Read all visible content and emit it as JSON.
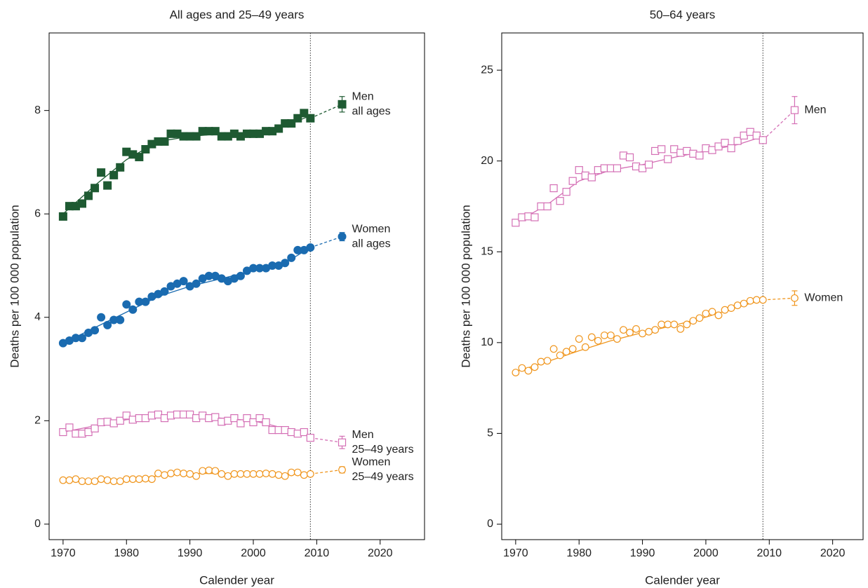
{
  "chart_data": [
    {
      "type": "scatter",
      "title": "All ages and 25–49 years",
      "x_label": "Calender year",
      "y_label": "Deaths per 100 000 population",
      "xlim": [
        1967.8,
        2027
      ],
      "ylim": [
        -0.3,
        9.5
      ],
      "xticks": [
        1970,
        1980,
        1990,
        2000,
        2010,
        2020
      ],
      "yticks": [
        0,
        2,
        4,
        6,
        8
      ],
      "x": [
        1970,
        1971,
        1972,
        1973,
        1974,
        1975,
        1976,
        1977,
        1978,
        1979,
        1980,
        1981,
        1982,
        1983,
        1984,
        1985,
        1986,
        1987,
        1988,
        1989,
        1990,
        1991,
        1992,
        1993,
        1994,
        1995,
        1996,
        1997,
        1998,
        1999,
        2000,
        2001,
        2002,
        2003,
        2004,
        2005,
        2006,
        2007,
        2008,
        2009
      ],
      "fit_x": [
        1970,
        1975,
        1980,
        1985,
        1990,
        1995,
        2000,
        2005,
        2009
      ],
      "projection_x": 2014,
      "cutoff_x": 2009,
      "series": [
        {
          "name": [
            "Men",
            "all ages"
          ],
          "color": "#1e5a32",
          "marker": "square",
          "filled": true,
          "values": [
            5.95,
            6.15,
            6.15,
            6.2,
            6.35,
            6.5,
            6.8,
            6.55,
            6.75,
            6.9,
            7.2,
            7.15,
            7.1,
            7.25,
            7.35,
            7.4,
            7.4,
            7.55,
            7.55,
            7.5,
            7.5,
            7.5,
            7.6,
            7.6,
            7.6,
            7.5,
            7.5,
            7.55,
            7.5,
            7.55,
            7.55,
            7.55,
            7.6,
            7.6,
            7.65,
            7.75,
            7.75,
            7.85,
            7.95,
            7.85
          ],
          "fit": [
            6.0,
            6.55,
            7.05,
            7.4,
            7.5,
            7.55,
            7.55,
            7.7,
            7.9
          ],
          "projection": 8.12,
          "projection_error": 0.15
        },
        {
          "name": [
            "Women",
            "all ages"
          ],
          "color": "#1a6bb0",
          "marker": "circle",
          "filled": true,
          "values": [
            3.5,
            3.55,
            3.6,
            3.6,
            3.7,
            3.75,
            4.0,
            3.85,
            3.95,
            3.95,
            4.25,
            4.15,
            4.3,
            4.3,
            4.4,
            4.45,
            4.5,
            4.6,
            4.65,
            4.7,
            4.6,
            4.65,
            4.75,
            4.8,
            4.8,
            4.75,
            4.7,
            4.75,
            4.8,
            4.9,
            4.95,
            4.95,
            4.95,
            5.0,
            5.0,
            5.05,
            5.15,
            5.3,
            5.3,
            5.35
          ],
          "fit": [
            3.5,
            3.8,
            4.1,
            4.4,
            4.6,
            4.75,
            4.9,
            5.05,
            5.35
          ],
          "projection": 5.56,
          "projection_error": 0.08
        },
        {
          "name": [
            "Men",
            "25–49 years"
          ],
          "color": "#d46fb5",
          "marker": "square",
          "filled": false,
          "values": [
            1.78,
            1.87,
            1.75,
            1.75,
            1.78,
            1.85,
            1.97,
            1.98,
            1.95,
            2.0,
            2.1,
            2.02,
            2.05,
            2.05,
            2.1,
            2.12,
            2.05,
            2.1,
            2.12,
            2.12,
            2.12,
            2.05,
            2.1,
            2.05,
            2.07,
            1.98,
            2.0,
            2.05,
            1.95,
            2.05,
            1.97,
            2.05,
            1.97,
            1.82,
            1.82,
            1.82,
            1.78,
            1.75,
            1.78,
            1.67
          ],
          "fit": [
            1.78,
            1.9,
            2.02,
            2.08,
            2.1,
            2.05,
            2.0,
            1.85,
            1.7
          ],
          "projection": 1.58,
          "projection_error": 0.12
        },
        {
          "name": [
            "Women",
            "25–49 years"
          ],
          "color": "#f0961e",
          "marker": "circle",
          "filled": false,
          "values": [
            0.85,
            0.85,
            0.87,
            0.83,
            0.83,
            0.83,
            0.87,
            0.85,
            0.83,
            0.83,
            0.87,
            0.87,
            0.87,
            0.88,
            0.87,
            0.98,
            0.95,
            0.98,
            1.0,
            0.98,
            0.97,
            0.93,
            1.03,
            1.04,
            1.03,
            0.97,
            0.93,
            0.97,
            0.97,
            0.97,
            0.97,
            0.97,
            0.98,
            0.97,
            0.95,
            0.93,
            1.0,
            1.0,
            0.95,
            0.97
          ],
          "fit": [
            0.85,
            0.86,
            0.87,
            0.93,
            0.98,
            0.98,
            0.97,
            0.97,
            0.97
          ],
          "projection": 1.05,
          "projection_error": 0.06
        }
      ]
    },
    {
      "type": "scatter",
      "title": "50–64 years",
      "x_label": "Calender year",
      "y_label": "Deaths per 100 000 population",
      "xlim": [
        1967.8,
        2024.8
      ],
      "ylim": [
        -0.85,
        27.05
      ],
      "xticks": [
        1970,
        1980,
        1990,
        2000,
        2010,
        2020
      ],
      "yticks": [
        0,
        5,
        10,
        15,
        20,
        25
      ],
      "x": [
        1970,
        1971,
        1972,
        1973,
        1974,
        1975,
        1976,
        1977,
        1978,
        1979,
        1980,
        1981,
        1982,
        1983,
        1984,
        1985,
        1986,
        1987,
        1988,
        1989,
        1990,
        1991,
        1992,
        1993,
        1994,
        1995,
        1996,
        1997,
        1998,
        1999,
        2000,
        2001,
        2002,
        2003,
        2004,
        2005,
        2006,
        2007,
        2008,
        2009
      ],
      "fit_x": [
        1970,
        1975,
        1980,
        1985,
        1990,
        1995,
        2000,
        2005,
        2009
      ],
      "projection_x": 2014,
      "cutoff_x": 2009,
      "series": [
        {
          "name": [
            "Men"
          ],
          "color": "#d46fb5",
          "marker": "square",
          "filled": false,
          "values": [
            16.6,
            16.9,
            16.95,
            16.9,
            17.5,
            17.5,
            18.5,
            17.8,
            18.3,
            18.9,
            19.5,
            19.2,
            19.1,
            19.5,
            19.6,
            19.6,
            19.6,
            20.3,
            20.2,
            19.7,
            19.6,
            19.8,
            20.55,
            20.65,
            20.1,
            20.65,
            20.45,
            20.55,
            20.4,
            20.3,
            20.7,
            20.6,
            20.8,
            21.0,
            20.7,
            21.1,
            21.4,
            21.6,
            21.4,
            21.15
          ],
          "fit": [
            16.6,
            17.6,
            18.9,
            19.5,
            19.8,
            20.2,
            20.55,
            20.9,
            21.35
          ],
          "projection": 22.8,
          "projection_error": 0.75
        },
        {
          "name": [
            "Women"
          ],
          "color": "#f0961e",
          "marker": "circle",
          "filled": false,
          "values": [
            8.35,
            8.6,
            8.45,
            8.65,
            8.95,
            9.0,
            9.65,
            9.3,
            9.5,
            9.65,
            10.2,
            9.75,
            10.3,
            10.1,
            10.4,
            10.4,
            10.2,
            10.7,
            10.55,
            10.75,
            10.5,
            10.6,
            10.7,
            11.0,
            11.0,
            11.0,
            10.75,
            11.0,
            11.2,
            11.35,
            11.6,
            11.7,
            11.5,
            11.8,
            11.9,
            12.05,
            12.15,
            12.3,
            12.35,
            12.35
          ],
          "fit": [
            8.4,
            8.95,
            9.55,
            10.1,
            10.55,
            10.95,
            11.4,
            11.95,
            12.35
          ],
          "projection": 12.45,
          "projection_error": 0.4
        }
      ]
    }
  ]
}
